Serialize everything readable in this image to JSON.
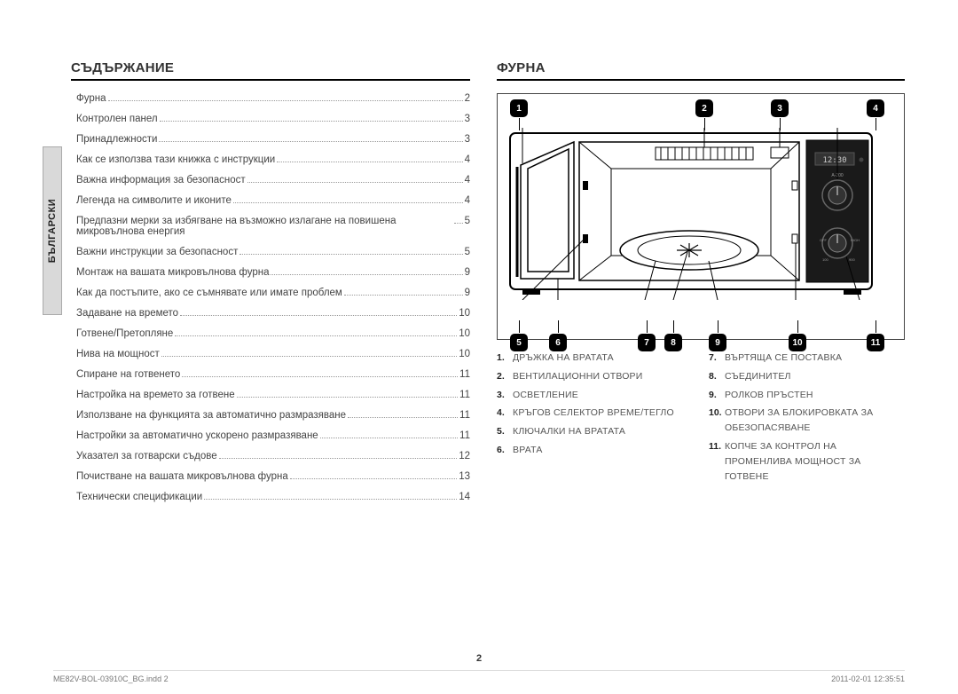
{
  "sidebar_label": "БЪЛГАРСКИ",
  "headings": {
    "toc": "СЪДЪРЖАНИЕ",
    "oven": "ФУРНА"
  },
  "toc": [
    {
      "label": "Фурна",
      "page": "2",
      "indent": false
    },
    {
      "label": "Контролен панел",
      "page": "3",
      "indent": false
    },
    {
      "label": "Принадлежности",
      "page": "3",
      "indent": false
    },
    {
      "label": "Как се използва тази книжка с инструкции",
      "page": "4",
      "indent": false
    },
    {
      "label": "Важна информация за безопасност",
      "page": "4",
      "indent": false
    },
    {
      "label": "Легенда на символите и иконите",
      "page": "4",
      "indent": false
    },
    {
      "label": "Предпазни мерки за избягване на възможно излагане на повишена микровълнова енергия",
      "page": "5",
      "indent": false
    },
    {
      "label": "Важни инструкции за безопасност",
      "page": "5",
      "indent": false
    },
    {
      "label": "Монтаж на вашата микровълнова фурна",
      "page": "9",
      "indent": false
    },
    {
      "label": "Как да постъпите, ако се съмнявате или имате проблем",
      "page": "9",
      "indent": false
    },
    {
      "label": "Задаване на времето",
      "page": "10",
      "indent": false
    },
    {
      "label": "Готвене/Претопляне",
      "page": "10",
      "indent": false
    },
    {
      "label": "Нива на мощност",
      "page": "10",
      "indent": false
    },
    {
      "label": "Спиране на готвенето",
      "page": "11",
      "indent": false
    },
    {
      "label": "Настройка на времето за готвене",
      "page": "11",
      "indent": false
    },
    {
      "label": "Използване на функцията за автоматично размразяване",
      "page": "11",
      "indent": false
    },
    {
      "label": "Настройки за автоматично ускорено размразяване",
      "page": "11",
      "indent": false
    },
    {
      "label": "Указател за готварски съдове",
      "page": "12",
      "indent": false
    },
    {
      "label": "Почистване на вашата микровълнова фурна",
      "page": "13",
      "indent": false
    },
    {
      "label": "Технически спецификации",
      "page": "14",
      "indent": false
    }
  ],
  "callouts_top": [
    "1",
    "2",
    "3",
    "4"
  ],
  "callouts_bottom": [
    "5",
    "6",
    "7",
    "8",
    "9",
    "10",
    "11"
  ],
  "legend_left": [
    {
      "n": "1.",
      "t": "ДРЪЖКА НА ВРАТАТА"
    },
    {
      "n": "2.",
      "t": "ВЕНТИЛАЦИОННИ ОТВОРИ"
    },
    {
      "n": "3.",
      "t": "ОСВЕТЛЕНИЕ"
    },
    {
      "n": "4.",
      "t": "КРЪГОВ СЕЛЕКТОР ВРЕМЕ/ТЕГЛО"
    },
    {
      "n": "5.",
      "t": "КЛЮЧАЛКИ НА ВРАТАТА"
    },
    {
      "n": "6.",
      "t": "ВРАТА"
    }
  ],
  "legend_right": [
    {
      "n": "7.",
      "t": "ВЪРТЯЩА СЕ ПОСТАВКА"
    },
    {
      "n": "8.",
      "t": "СЪЕДИНИТЕЛ"
    },
    {
      "n": "9.",
      "t": "РОЛКОВ ПРЪСТЕН"
    },
    {
      "n": "10.",
      "t": "ОТВОРИ ЗА БЛОКИРОВКАТА ЗА ОБЕЗОПАСЯВАНЕ"
    },
    {
      "n": "11.",
      "t": "КОПЧЕ ЗА КОНТРОЛ НА ПРОМЕНЛИВА МОЩНОСТ ЗА ГОТВЕНЕ"
    }
  ],
  "oven": {
    "display_text": "12:30",
    "colors": {
      "panel": "#1a1a1a",
      "ink": "#000",
      "display_text": "#ccc"
    }
  },
  "page_number": "2",
  "footer": {
    "left": "ME82V-BOL-03910C_BG.indd   2",
    "right": "2011-02-01   12:35:51"
  }
}
